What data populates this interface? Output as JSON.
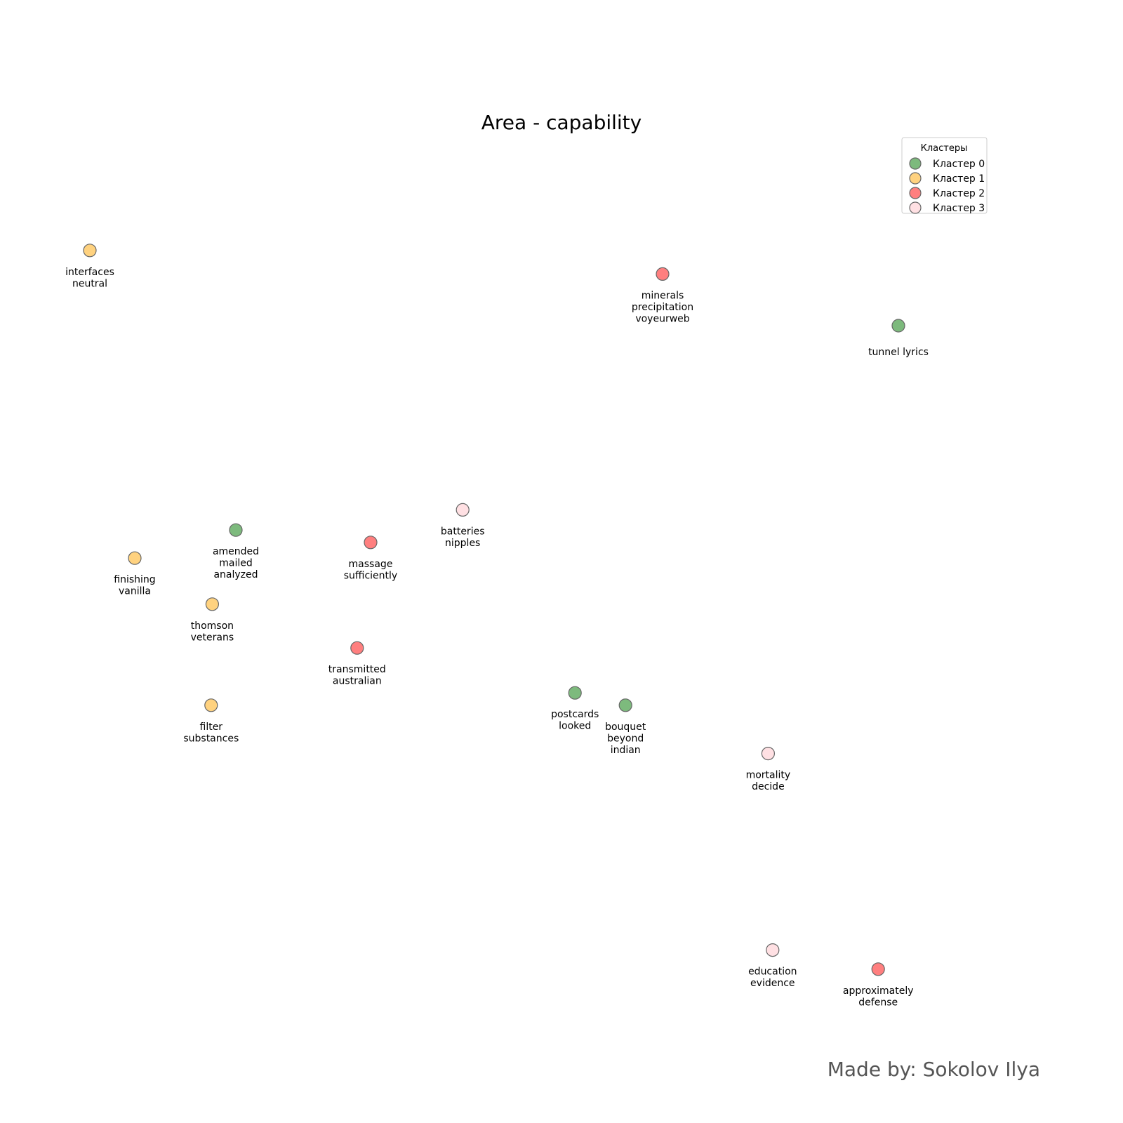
{
  "chart_data": {
    "type": "scatter",
    "title": "Area - capability",
    "xlabel": "",
    "ylabel": "",
    "axes_visible": false,
    "grid": false,
    "xlim": [
      0,
      100
    ],
    "ylim": [
      0,
      100
    ],
    "legend": {
      "title": "Кластеры",
      "placement": "top-right",
      "entries": [
        {
          "cluster": 0,
          "label": "Кластер 0"
        },
        {
          "cluster": 1,
          "label": "Кластер 1"
        },
        {
          "cluster": 2,
          "label": "Кластер 2"
        },
        {
          "cluster": 3,
          "label": "Кластер 3"
        }
      ]
    },
    "colors": {
      "0": "#7dba7d",
      "1": "#ffd27f",
      "2": "#ff7f7f",
      "3": "#ffe0e3",
      "edge": "#666666"
    },
    "points": [
      {
        "x": 8.0,
        "y": 77.7,
        "cluster": 1,
        "label": [
          "interfaces",
          "neutral"
        ]
      },
      {
        "x": 59.0,
        "y": 75.6,
        "cluster": 2,
        "label": [
          "minerals",
          "precipitation",
          "voyeurweb"
        ]
      },
      {
        "x": 80.0,
        "y": 71.0,
        "cluster": 0,
        "label": [
          "tunnel lyrics"
        ]
      },
      {
        "x": 41.2,
        "y": 54.6,
        "cluster": 3,
        "label": [
          "batteries",
          "nipples"
        ]
      },
      {
        "x": 21.0,
        "y": 52.8,
        "cluster": 0,
        "label": [
          "amended",
          "mailed",
          "analyzed"
        ]
      },
      {
        "x": 33.0,
        "y": 51.7,
        "cluster": 2,
        "label": [
          "massage",
          "sufficiently"
        ]
      },
      {
        "x": 12.0,
        "y": 50.3,
        "cluster": 1,
        "label": [
          "finishing",
          "vanilla"
        ]
      },
      {
        "x": 18.9,
        "y": 46.2,
        "cluster": 1,
        "label": [
          "thomson",
          "veterans"
        ]
      },
      {
        "x": 31.8,
        "y": 42.3,
        "cluster": 2,
        "label": [
          "transmitted",
          "australian"
        ]
      },
      {
        "x": 51.2,
        "y": 38.3,
        "cluster": 0,
        "label": [
          "postcards",
          "looked"
        ]
      },
      {
        "x": 55.7,
        "y": 37.2,
        "cluster": 0,
        "label": [
          "bouquet",
          "beyond",
          "indian"
        ]
      },
      {
        "x": 18.8,
        "y": 37.2,
        "cluster": 1,
        "label": [
          "filter",
          "substances"
        ]
      },
      {
        "x": 68.4,
        "y": 32.9,
        "cluster": 3,
        "label": [
          "mortality",
          "decide"
        ]
      },
      {
        "x": 68.8,
        "y": 15.4,
        "cluster": 3,
        "label": [
          "education",
          "evidence"
        ]
      },
      {
        "x": 78.2,
        "y": 13.7,
        "cluster": 2,
        "label": [
          "approximately",
          "defense"
        ]
      }
    ]
  },
  "credit": "Made by: Sokolov Ilya"
}
